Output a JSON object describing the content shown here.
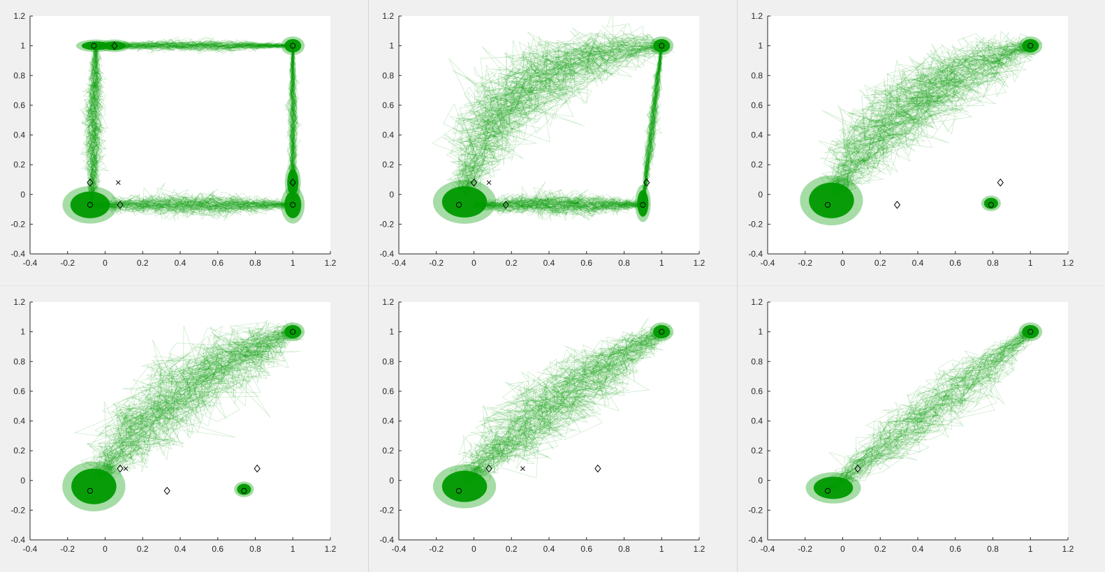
{
  "figure": {
    "colors": {
      "trajectory": "#009a00",
      "marker": "#000000",
      "axes_bg": "#ffffff",
      "figure_bg": "#f0f0f0",
      "axis_line": "#262626"
    }
  },
  "chart_data": [
    {
      "type": "line",
      "panel": 1,
      "xlim": [
        -0.4,
        1.2
      ],
      "ylim": [
        -0.4,
        1.2
      ],
      "x_ticks": [
        "-0.4",
        "-0.2",
        "0",
        "0.2",
        "0.4",
        "0.6",
        "0.8",
        "1",
        "1.2"
      ],
      "y_ticks": [
        "-0.4",
        "-0.2",
        "0",
        "0.2",
        "0.4",
        "0.6",
        "0.8",
        "1",
        "1.2"
      ],
      "clusters": [
        {
          "x": -0.05,
          "y": 1.0,
          "sx": 0.05,
          "sy": 0.02
        },
        {
          "x": 0.05,
          "y": 1.0,
          "sx": 0.04,
          "sy": 0.02
        },
        {
          "x": 1.0,
          "y": 1.0,
          "sx": 0.03,
          "sy": 0.03
        },
        {
          "x": -0.08,
          "y": -0.07,
          "sx": 0.07,
          "sy": 0.06
        },
        {
          "x": 1.0,
          "y": -0.07,
          "sx": 0.03,
          "sy": 0.06
        },
        {
          "x": 1.0,
          "y": 0.08,
          "sx": 0.02,
          "sy": 0.06
        }
      ],
      "bundles": [
        {
          "from": [
            -0.05,
            1.0
          ],
          "to": [
            1.0,
            1.0
          ],
          "spread": 0.015
        },
        {
          "from": [
            -0.08,
            -0.07
          ],
          "to": [
            1.0,
            -0.07
          ],
          "spread": 0.03
        },
        {
          "from": [
            -0.07,
            -0.07
          ],
          "to": [
            -0.05,
            1.0
          ],
          "spread": 0.02
        },
        {
          "from": [
            1.0,
            -0.07
          ],
          "to": [
            1.0,
            1.0
          ],
          "spread": 0.01
        }
      ],
      "markers": [
        {
          "shape": "circle",
          "x": -0.06,
          "y": 1.0
        },
        {
          "shape": "diamond",
          "x": 0.05,
          "y": 1.0
        },
        {
          "shape": "circle",
          "x": 1.0,
          "y": 1.0
        },
        {
          "shape": "diamond",
          "x": -0.08,
          "y": 0.08
        },
        {
          "shape": "cross",
          "x": 0.07,
          "y": 0.08
        },
        {
          "shape": "circle",
          "x": -0.08,
          "y": -0.07
        },
        {
          "shape": "diamond",
          "x": 0.08,
          "y": -0.07
        },
        {
          "shape": "diamond",
          "x": 1.0,
          "y": 0.08
        },
        {
          "shape": "circle",
          "x": 1.0,
          "y": -0.07
        }
      ]
    },
    {
      "type": "line",
      "panel": 2,
      "xlim": [
        -0.4,
        1.2
      ],
      "ylim": [
        -0.4,
        1.2
      ],
      "x_ticks": [
        "-0.4",
        "-0.2",
        "0",
        "0.2",
        "0.4",
        "0.6",
        "0.8",
        "1",
        "1.2"
      ],
      "y_ticks": [
        "-0.4",
        "-0.2",
        "0",
        "0.2",
        "0.4",
        "0.6",
        "0.8",
        "1",
        "1.2"
      ],
      "clusters": [
        {
          "x": 1.0,
          "y": 1.0,
          "sx": 0.03,
          "sy": 0.03
        },
        {
          "x": -0.05,
          "y": -0.05,
          "sx": 0.08,
          "sy": 0.07
        },
        {
          "x": 0.9,
          "y": -0.06,
          "sx": 0.02,
          "sy": 0.06
        }
      ],
      "bundles": [
        {
          "from": [
            -0.05,
            0.0
          ],
          "to": [
            1.0,
            1.0
          ],
          "spread": 0.08,
          "via": [
            0.1,
            0.95
          ]
        },
        {
          "from": [
            0.9,
            -0.07
          ],
          "to": [
            1.0,
            1.0
          ],
          "spread": 0.01
        },
        {
          "from": [
            0.0,
            -0.07
          ],
          "to": [
            0.9,
            -0.07
          ],
          "spread": 0.03
        }
      ],
      "markers": [
        {
          "shape": "circle",
          "x": 1.0,
          "y": 1.0
        },
        {
          "shape": "diamond",
          "x": 0.0,
          "y": 0.08
        },
        {
          "shape": "cross",
          "x": 0.08,
          "y": 0.08
        },
        {
          "shape": "circle",
          "x": -0.08,
          "y": -0.07
        },
        {
          "shape": "diamond",
          "x": 0.17,
          "y": -0.07
        },
        {
          "shape": "diamond",
          "x": 0.92,
          "y": 0.08
        },
        {
          "shape": "circle",
          "x": 0.9,
          "y": -0.07
        }
      ]
    },
    {
      "type": "line",
      "panel": 3,
      "xlim": [
        -0.4,
        1.2
      ],
      "ylim": [
        -0.4,
        1.2
      ],
      "x_ticks": [
        "-0.4",
        "-0.2",
        "0",
        "0.2",
        "0.4",
        "0.6",
        "0.8",
        "1",
        "1.2"
      ],
      "y_ticks": [
        "-0.4",
        "-0.2",
        "0",
        "0.2",
        "0.4",
        "0.6",
        "0.8",
        "1",
        "1.2"
      ],
      "clusters": [
        {
          "x": 1.0,
          "y": 1.0,
          "sx": 0.03,
          "sy": 0.03
        },
        {
          "x": -0.06,
          "y": -0.04,
          "sx": 0.08,
          "sy": 0.08
        },
        {
          "x": 0.79,
          "y": -0.06,
          "sx": 0.025,
          "sy": 0.025
        }
      ],
      "bundles": [
        {
          "from": [
            -0.05,
            0.0
          ],
          "to": [
            1.0,
            1.0
          ],
          "spread": 0.08,
          "via": [
            0.3,
            0.75
          ]
        }
      ],
      "markers": [
        {
          "shape": "circle",
          "x": 1.0,
          "y": 1.0
        },
        {
          "shape": "circle",
          "x": -0.08,
          "y": -0.07
        },
        {
          "shape": "diamond",
          "x": 0.29,
          "y": -0.07
        },
        {
          "shape": "diamond",
          "x": 0.84,
          "y": 0.08
        },
        {
          "shape": "circle",
          "x": 0.79,
          "y": -0.07
        }
      ]
    },
    {
      "type": "line",
      "panel": 4,
      "xlim": [
        -0.4,
        1.2
      ],
      "ylim": [
        -0.4,
        1.2
      ],
      "x_ticks": [
        "-0.4",
        "-0.2",
        "0",
        "0.2",
        "0.4",
        "0.6",
        "0.8",
        "1",
        "1.2"
      ],
      "y_ticks": [
        "-0.4",
        "-0.2",
        "0",
        "0.2",
        "0.4",
        "0.6",
        "0.8",
        "1",
        "1.2"
      ],
      "clusters": [
        {
          "x": 1.0,
          "y": 1.0,
          "sx": 0.03,
          "sy": 0.03
        },
        {
          "x": -0.06,
          "y": -0.04,
          "sx": 0.08,
          "sy": 0.08
        },
        {
          "x": 0.74,
          "y": -0.06,
          "sx": 0.025,
          "sy": 0.025
        }
      ],
      "bundles": [
        {
          "from": [
            -0.05,
            0.0
          ],
          "to": [
            1.0,
            1.0
          ],
          "spread": 0.08,
          "via": [
            0.35,
            0.7
          ]
        }
      ],
      "markers": [
        {
          "shape": "circle",
          "x": 1.0,
          "y": 1.0
        },
        {
          "shape": "diamond",
          "x": 0.08,
          "y": 0.08
        },
        {
          "shape": "cross",
          "x": 0.11,
          "y": 0.08
        },
        {
          "shape": "circle",
          "x": -0.08,
          "y": -0.07
        },
        {
          "shape": "diamond",
          "x": 0.33,
          "y": -0.07
        },
        {
          "shape": "diamond",
          "x": 0.81,
          "y": 0.08
        },
        {
          "shape": "circle",
          "x": 0.74,
          "y": -0.07
        }
      ]
    },
    {
      "type": "line",
      "panel": 5,
      "xlim": [
        -0.4,
        1.2
      ],
      "ylim": [
        -0.4,
        1.2
      ],
      "x_ticks": [
        "-0.4",
        "-0.2",
        "0",
        "0.2",
        "0.4",
        "0.6",
        "0.8",
        "1",
        "1.2"
      ],
      "y_ticks": [
        "-0.4",
        "-0.2",
        "0",
        "0.2",
        "0.4",
        "0.6",
        "0.8",
        "1",
        "1.2"
      ],
      "clusters": [
        {
          "x": 1.0,
          "y": 1.0,
          "sx": 0.03,
          "sy": 0.03
        },
        {
          "x": -0.05,
          "y": -0.04,
          "sx": 0.08,
          "sy": 0.07
        }
      ],
      "bundles": [
        {
          "from": [
            -0.05,
            0.0
          ],
          "to": [
            1.0,
            1.0
          ],
          "spread": 0.07,
          "via": [
            0.4,
            0.6
          ]
        }
      ],
      "markers": [
        {
          "shape": "circle",
          "x": 1.0,
          "y": 1.0
        },
        {
          "shape": "diamond",
          "x": 0.08,
          "y": 0.08
        },
        {
          "shape": "cross",
          "x": 0.26,
          "y": 0.08
        },
        {
          "shape": "circle",
          "x": -0.08,
          "y": -0.07
        },
        {
          "shape": "diamond",
          "x": 0.66,
          "y": 0.08
        }
      ]
    },
    {
      "type": "line",
      "panel": 6,
      "xlim": [
        -0.4,
        1.2
      ],
      "ylim": [
        -0.4,
        1.2
      ],
      "x_ticks": [
        "-0.4",
        "-0.2",
        "0",
        "0.2",
        "0.4",
        "0.6",
        "0.8",
        "1",
        "1.2"
      ],
      "y_ticks": [
        "-0.4",
        "-0.2",
        "0",
        "0.2",
        "0.4",
        "0.6",
        "0.8",
        "1",
        "1.2"
      ],
      "clusters": [
        {
          "x": 1.0,
          "y": 1.0,
          "sx": 0.03,
          "sy": 0.03
        },
        {
          "x": -0.05,
          "y": -0.05,
          "sx": 0.07,
          "sy": 0.05
        }
      ],
      "bundles": [
        {
          "from": [
            -0.08,
            -0.07
          ],
          "to": [
            1.0,
            1.0
          ],
          "spread": 0.04,
          "via": [
            0.46,
            0.46
          ]
        }
      ],
      "markers": [
        {
          "shape": "circle",
          "x": 1.0,
          "y": 1.0
        },
        {
          "shape": "diamond",
          "x": 0.08,
          "y": 0.08
        },
        {
          "shape": "circle",
          "x": -0.08,
          "y": -0.07
        }
      ]
    }
  ]
}
